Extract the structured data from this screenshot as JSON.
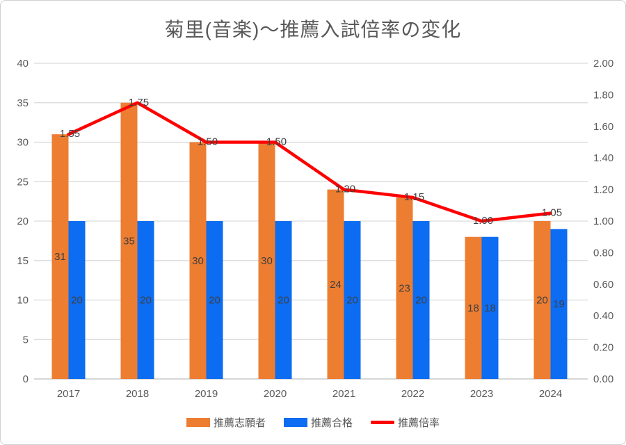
{
  "title": "菊里(音楽)～推薦入試倍率の変化",
  "chart_data": {
    "type": "combo-bar-line",
    "title": "菊里(音楽)～推薦入試倍率の変化",
    "categories": [
      "2017",
      "2018",
      "2019",
      "2020",
      "2021",
      "2022",
      "2023",
      "2024"
    ],
    "series": [
      {
        "name": "推薦志願者",
        "type": "bar",
        "axis": "left",
        "color": "#ED7D31",
        "values": [
          31,
          35,
          30,
          30,
          24,
          23,
          18,
          20
        ]
      },
      {
        "name": "推薦合格",
        "type": "bar",
        "axis": "left",
        "color": "#0C6CF2",
        "values": [
          20,
          20,
          20,
          20,
          20,
          20,
          18,
          19
        ]
      },
      {
        "name": "推薦倍率",
        "type": "line",
        "axis": "right",
        "color": "#FF0000",
        "values": [
          1.55,
          1.75,
          1.5,
          1.5,
          1.2,
          1.15,
          1.0,
          1.05
        ]
      }
    ],
    "left_axis": {
      "min": 0,
      "max": 40,
      "step": 5,
      "ticks": [
        "0",
        "5",
        "10",
        "15",
        "20",
        "25",
        "30",
        "35",
        "40"
      ]
    },
    "right_axis": {
      "min": 0,
      "max": 2,
      "step": 0.2,
      "ticks": [
        "0.00",
        "0.20",
        "0.40",
        "0.60",
        "0.80",
        "1.00",
        "1.20",
        "1.40",
        "1.60",
        "1.80",
        "2.00"
      ]
    },
    "grid": true,
    "data_labels": true,
    "legend_position": "bottom"
  },
  "colors": {
    "bar_applicants": "#ED7D31",
    "bar_accepted": "#0C6CF2",
    "line_ratio": "#FF0000",
    "gridline": "#D9D9D9",
    "axis_line": "#BFBFBF",
    "tick_text": "#595959",
    "data_label_text": "#404040",
    "title_text": "#595959",
    "frame_border": "#CFCFCF"
  }
}
